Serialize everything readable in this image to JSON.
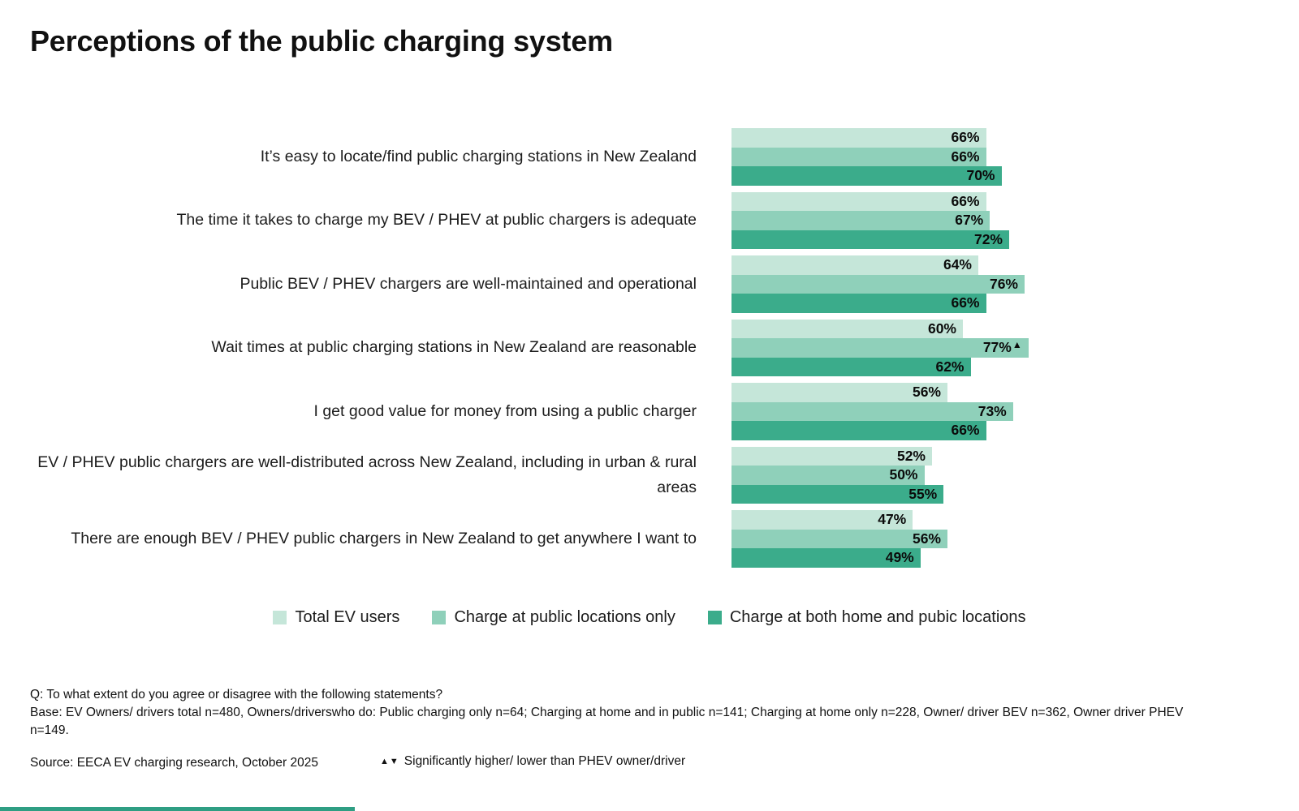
{
  "title": "Perceptions of the public charging system",
  "colors": {
    "series_light": "#c5e6d9",
    "series_medium": "#8fd0ba",
    "series_dark": "#3bac8b",
    "accent_line": "#2e9e83",
    "text": "#1a1a1a"
  },
  "chart_data": {
    "type": "bar",
    "orientation": "horizontal",
    "value_suffix": "%",
    "xlim": [
      0,
      100
    ],
    "grid": false,
    "legend_position": "bottom-center",
    "categories": [
      "It’s easy to locate/find public charging stations in New Zealand",
      "The time it takes to charge my BEV / PHEV at public chargers is adequate",
      "Public BEV / PHEV chargers are well-maintained and operational",
      "Wait times at public charging stations in New Zealand are reasonable",
      "I get good value for money from using a public charger",
      "EV / PHEV public chargers are well-distributed across New Zealand, including in urban & rural areas",
      "There are enough BEV / PHEV public chargers in New Zealand to get anywhere I want to"
    ],
    "series": [
      {
        "name": "Total EV users",
        "color": "#c5e6d9",
        "values": [
          66,
          66,
          64,
          60,
          56,
          52,
          47
        ]
      },
      {
        "name": "Charge at public locations only",
        "color": "#8fd0ba",
        "values": [
          66,
          67,
          76,
          77,
          73,
          50,
          56
        ]
      },
      {
        "name": "Charge at both home and pubic locations",
        "color": "#3bac8b",
        "values": [
          70,
          72,
          66,
          62,
          66,
          55,
          49
        ]
      }
    ],
    "annotations": [
      {
        "category_index": 3,
        "series_index": 1,
        "marker": "▲"
      }
    ]
  },
  "footnotes": {
    "question": "Q: To what extent do you agree or disagree with the following statements?",
    "base": "Base: EV Owners/ drivers total n=480, Owners/driverswho do: Public charging only n=64; Charging at home and in public n=141; Charging at home only n=228, Owner/ driver BEV n=362, Owner driver PHEV n=149.",
    "source": "Source: EECA EV charging research, October 2025",
    "significance_markers": "▲▼",
    "significance_note": "Significantly higher/ lower than PHEV owner/driver"
  }
}
